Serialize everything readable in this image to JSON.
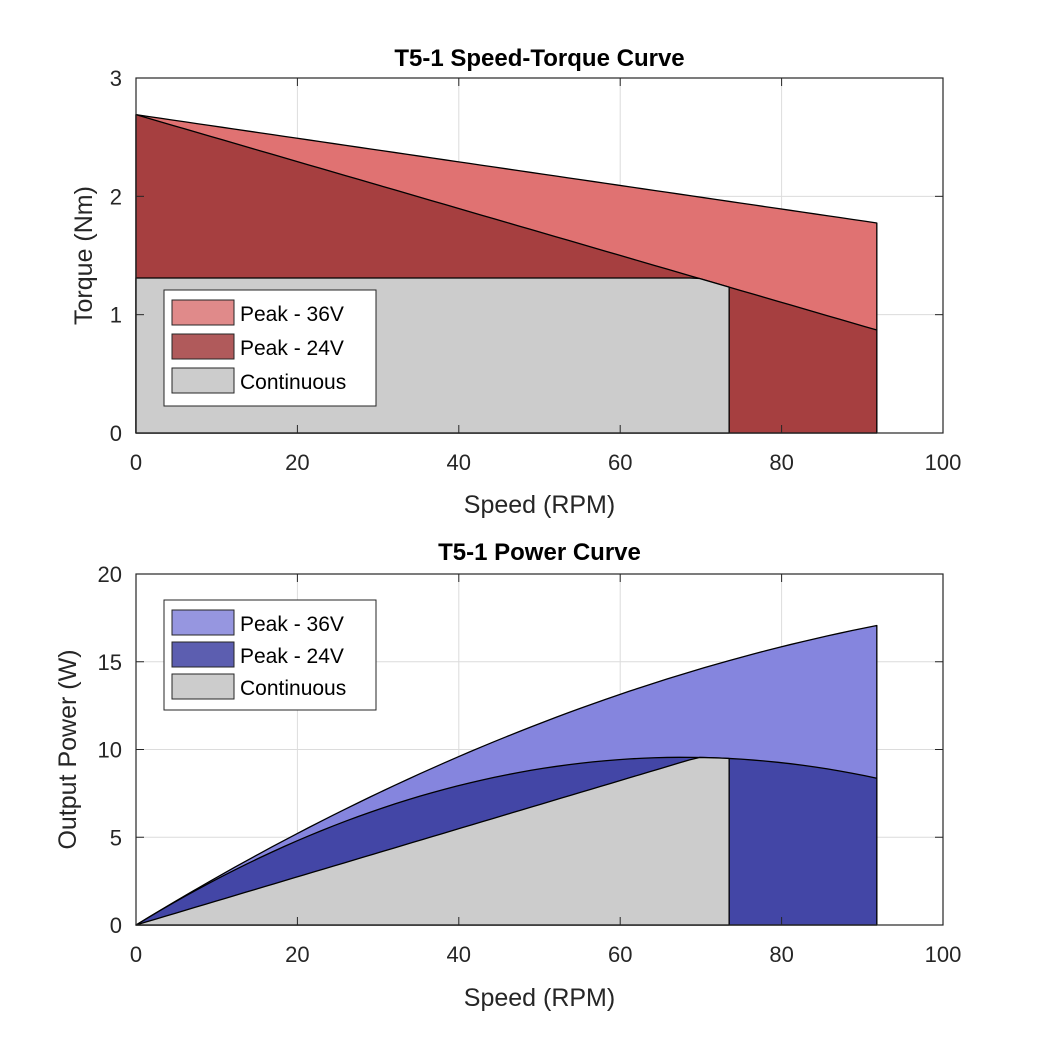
{
  "chart_data": [
    {
      "type": "area",
      "title": "T5-1  Speed-Torque Curve",
      "xlabel": "Speed (RPM)",
      "ylabel": "Torque (Nm)",
      "xlim": [
        0,
        100
      ],
      "ylim": [
        0,
        3
      ],
      "xticks": [
        "0",
        "20",
        "40",
        "60",
        "80",
        "100"
      ],
      "yticks": [
        "0",
        "1",
        "2",
        "3"
      ],
      "grid": true,
      "legend_position": "lower-left",
      "series": [
        {
          "name": "Peak - 36V",
          "color": "#e07272",
          "legend_color": "#e08a8a",
          "x": [
            0,
            91.8
          ],
          "y": [
            2.69,
            1.775
          ]
        },
        {
          "name": "Peak - 24V",
          "color": "#a63f40",
          "legend_color": "#b05a5b",
          "x": [
            0,
            91.8
          ],
          "y": [
            2.69,
            0.87
          ]
        },
        {
          "name": "Continuous",
          "color": "#cccccc",
          "legend_color": "#cccccc",
          "x": [
            0,
            69.6,
            73.5
          ],
          "y": [
            1.31,
            1.31,
            1.233
          ]
        }
      ]
    },
    {
      "type": "area",
      "title": "T5-1 Power Curve",
      "xlabel": "Speed (RPM)",
      "ylabel": "Output Power (W)",
      "xlim": [
        0,
        100
      ],
      "ylim": [
        0,
        20
      ],
      "xticks": [
        "0",
        "20",
        "40",
        "60",
        "80",
        "100"
      ],
      "yticks": [
        "0",
        "5",
        "10",
        "15",
        "20"
      ],
      "grid": true,
      "legend_position": "upper-left",
      "series": [
        {
          "name": "Peak - 36V",
          "color": "#8585de",
          "legend_color": "#9696e0",
          "derived_from": "torque x speed x 2pi/60",
          "end_value": 17.06
        },
        {
          "name": "Peak - 24V",
          "color": "#4346a6",
          "legend_color": "#5c5eb0",
          "derived_from": "torque x speed x 2pi/60",
          "end_value": 8.36
        },
        {
          "name": "Continuous",
          "color": "#cccccc",
          "legend_color": "#cccccc",
          "derived_from": "torque x speed x 2pi/60",
          "end_value": 9.49
        }
      ]
    }
  ]
}
